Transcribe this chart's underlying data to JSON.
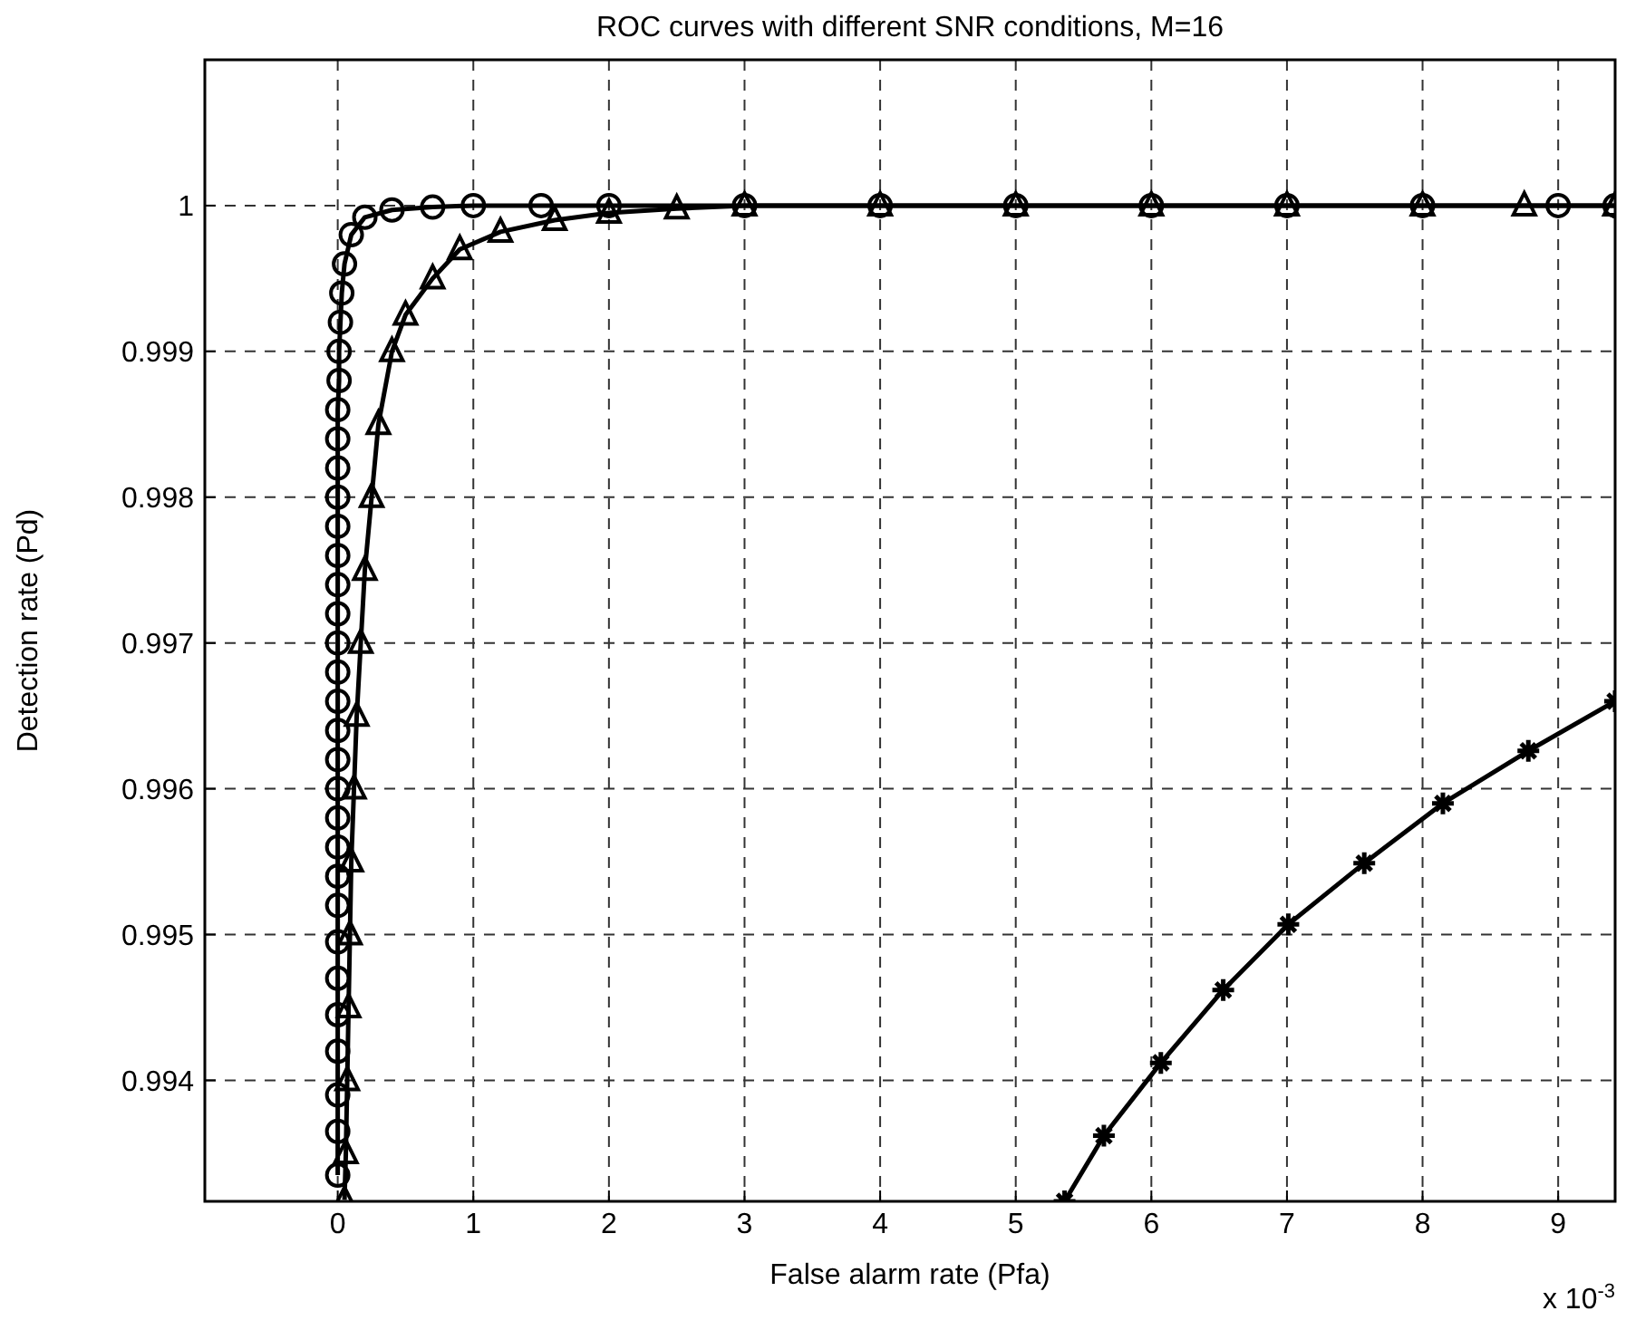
{
  "chart_data": {
    "type": "line",
    "title": "ROC curves with different SNR conditions, M=16",
    "xlabel": "False alarm rate (Pfa)",
    "ylabel": "Detection rate (Pd)",
    "annotations": [
      "x 10$^{-3}$"
    ],
    "xlim": [
      -0.98,
      9.42
    ],
    "xticks": [
      0,
      1,
      2,
      3,
      4,
      5,
      6,
      7,
      8,
      9
    ],
    "ylim": [
      0.99317,
      1.001
    ],
    "yticks": [
      0.994,
      0.995,
      0.996,
      0.997,
      0.998,
      0.999,
      1
    ],
    "grid": true,
    "line_style": "solid",
    "series": [
      {
        "color": "#000000",
        "marker": "circle",
        "x": [
          0,
          0,
          0,
          0,
          0,
          0,
          0,
          0,
          0,
          0,
          0,
          0,
          0,
          0,
          0,
          0,
          0,
          0,
          0,
          0,
          0,
          0,
          0,
          0,
          0,
          0.01,
          0.01,
          0.02,
          0.03,
          0.05,
          0.1,
          0.2,
          0.4,
          0.7,
          1,
          1.5,
          2,
          3,
          4,
          5,
          6,
          7,
          8,
          9,
          9.42
        ],
        "values": [
          0.99335,
          0.99365,
          0.9939,
          0.9942,
          0.99445,
          0.9947,
          0.99495,
          0.9952,
          0.9954,
          0.9956,
          0.9958,
          0.996,
          0.9962,
          0.9964,
          0.9966,
          0.9968,
          0.997,
          0.9972,
          0.9974,
          0.9976,
          0.9978,
          0.998,
          0.9982,
          0.9984,
          0.9986,
          0.9988,
          0.999,
          0.9992,
          0.9994,
          0.9996,
          0.9998,
          0.99992,
          0.99997,
          0.99999,
          1,
          1,
          1,
          1,
          1,
          1,
          1,
          1,
          1,
          1,
          1
        ]
      },
      {
        "color": "#000000",
        "marker": "triangle",
        "x": [
          0.05,
          0.06,
          0.07,
          0.08,
          0.09,
          0.1,
          0.12,
          0.14,
          0.17,
          0.2,
          0.25,
          0.3,
          0.4,
          0.5,
          0.7,
          0.9,
          1.2,
          1.6,
          2,
          2.5,
          3,
          4,
          5,
          6,
          7,
          8,
          8.75,
          9.42
        ],
        "values": [
          0.99318,
          0.9935,
          0.994,
          0.9945,
          0.995,
          0.9955,
          0.996,
          0.9965,
          0.997,
          0.9975,
          0.998,
          0.9985,
          0.999,
          0.99925,
          0.9995,
          0.9997,
          0.99982,
          0.9999,
          0.99995,
          0.99998,
          1,
          1,
          1,
          1,
          1,
          1,
          1,
          1
        ]
      },
      {
        "color": "#000000",
        "marker": "cross",
        "x": [
          5.36,
          5.65,
          6.07,
          6.53,
          7.01,
          7.57,
          8.15,
          8.78,
          9.42
        ],
        "values": [
          0.99317,
          0.99362,
          0.99412,
          0.99462,
          0.99507,
          0.99549,
          0.9959,
          0.99626,
          0.9966
        ]
      }
    ]
  }
}
